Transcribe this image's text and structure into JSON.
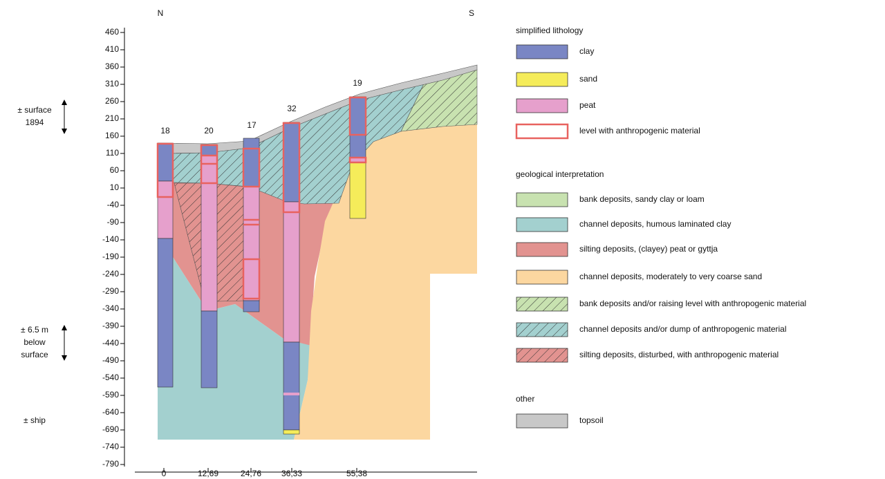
{
  "compass": {
    "north": "N",
    "south": "S"
  },
  "y_axis": {
    "ticks": [
      "460",
      "410",
      "360",
      "310",
      "260",
      "210",
      "160",
      "110",
      "60",
      "10",
      "-40",
      "-90",
      "-140",
      "-190",
      "-240",
      "-290",
      "-340",
      "-390",
      "-440",
      "-490",
      "-540",
      "-590",
      "-640",
      "-690",
      "-740",
      "-790"
    ]
  },
  "x_axis": {
    "ticks": [
      "0",
      "12,69",
      "24,76",
      "36,33",
      "55,38"
    ]
  },
  "boreholes": [
    "18",
    "20",
    "17",
    "32",
    "19"
  ],
  "annotations": [
    {
      "lines": [
        "± surface",
        "1894"
      ]
    },
    {
      "lines": [
        "± 6.5 m",
        "below",
        "surface"
      ]
    },
    {
      "lines": [
        "± ship"
      ]
    }
  ],
  "legend": [
    {
      "title": "simplified lithology",
      "items": [
        "clay",
        "sand",
        "peat",
        "level with anthropogenic material"
      ]
    },
    {
      "title": "geological interpretation",
      "items": [
        "bank deposits, sandy clay or loam",
        "channel deposits, humous laminated clay",
        "silting deposits, (clayey) peat or gyttja",
        "channel deposits, moderately to very coarse sand",
        "bank deposits and/or raising level with anthropogenic material",
        "channel deposits and/or dump of anthropogenic material",
        "silting deposits, disturbed, with anthropogenic material"
      ]
    },
    {
      "title": "other",
      "items": [
        "topsoil"
      ]
    }
  ]
}
